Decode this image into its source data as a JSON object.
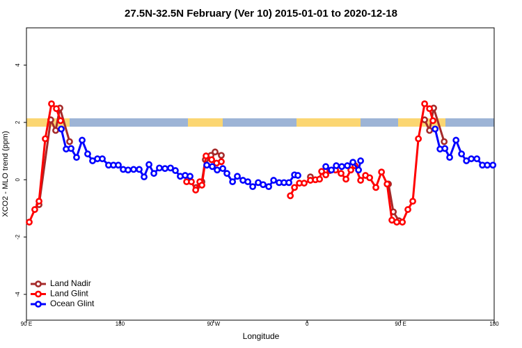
{
  "chart_data": {
    "type": "line",
    "title": "27.5N-32.5N February (Ver 10)   2015-01-01 to 2020-12-18",
    "x_label": "Longitude",
    "y_label": "XCO2 - MLO trend (ppm)",
    "xlim": [
      90,
      540
    ],
    "ylim": [
      -4.9,
      5.3
    ],
    "xticks": [
      {
        "value": 90,
        "label": "90 E"
      },
      180,
      {
        "value": 270,
        "label": "90 W"
      },
      {
        "value": 360,
        "label": "0"
      },
      {
        "value": 450,
        "label": "90 E"
      },
      {
        "value": 540,
        "label": "180"
      }
    ],
    "yticks": [
      -4,
      -2,
      0,
      2,
      4
    ],
    "legend": "bottom-left",
    "series": [
      {
        "name": "Land Nadir",
        "color": "#a52a2a",
        "x": [
          102.1,
          113.4,
          118.1,
          122.2,
          131.5,
          null,
          253.4,
          258.8,
          262.1,
          267.5,
          271.5,
          277.5,
          null,
          363.2,
          null,
          438.3,
          443.0,
          448.3,
          null,
          473.1,
          477.8,
          481.8,
          491.9
        ],
        "values": [
          -0.87,
          2.09,
          1.72,
          2.5,
          1.33,
          null,
          -0.27,
          -0.07,
          0.7,
          0.85,
          0.97,
          0.85,
          null,
          0.1,
          null,
          -0.15,
          -1.12,
          -1.43,
          null,
          2.09,
          1.72,
          2.5,
          1.33
        ]
      },
      {
        "name": "Land Glint",
        "color": "#ff0000",
        "x": [
          92.7,
          98.0,
          102.1,
          108.1,
          114.1,
          118.8,
          122.8,
          null,
          244.1,
          248.7,
          252.8,
          256.8,
          258.8,
          262.8,
          268.2,
          272.9,
          277.5,
          null,
          343.9,
          347.9,
          352.6,
          357.2,
          363.2,
          368.0,
          372.0,
          374.0,
          378.0,
          382.0,
          387.4,
          392.7,
          397.4,
          402.1,
          406.1,
          411.5,
          416.2,
          420.2,
          426.2,
          431.6,
          437.0,
          441.6,
          446.3,
          451.7,
          457.0,
          461.7,
          467.1,
          473.1,
          477.8,
          481.1
        ],
        "values": [
          -1.48,
          -1.04,
          -0.75,
          1.43,
          2.65,
          2.48,
          2.06,
          null,
          -0.07,
          -0.07,
          -0.36,
          -0.07,
          -0.19,
          0.83,
          0.7,
          0.58,
          0.63,
          null,
          -0.56,
          -0.27,
          -0.12,
          -0.12,
          -0.02,
          0,
          0.02,
          0.29,
          0.17,
          0.32,
          0.34,
          0.22,
          0.02,
          0.34,
          0.49,
          -0.02,
          0.15,
          0.07,
          -0.27,
          0.27,
          -0.15,
          -1.41,
          -1.48,
          -1.48,
          -1.04,
          -0.75,
          1.43,
          2.65,
          2.48,
          2.06
        ]
      },
      {
        "name": "Ocean Glint",
        "color": "#0000ff",
        "x": [
          123.5,
          128.2,
          132.9,
          138.2,
          143.6,
          148.9,
          153.6,
          158.3,
          163.0,
          169.0,
          173.7,
          178.4,
          183.1,
          187.8,
          193.1,
          198.5,
          203.2,
          207.9,
          212.6,
          217.9,
          223.3,
          228.6,
          233.3,
          238.0,
          242.7,
          247.4,
          null,
          263.5,
          268.8,
          273.5,
          278.9,
          282.9,
          288.3,
          292.9,
          298.3,
          303.0,
          307.7,
          313.0,
          317.7,
          323.1,
          327.8,
          333.1,
          337.8,
          342.5,
          347.9,
          351.2,
          null,
          378.0,
          383.4,
          388.1,
          393.4,
          398.8,
          404.1,
          409.5,
          411.5,
          null,
          483.2,
          487.9,
          492.6,
          497.2,
          503.3,
          508.6,
          513.3,
          518.0,
          523.4,
          528.7,
          533.4,
          538.8
        ],
        "values": [
          1.77,
          1.07,
          1.09,
          0.78,
          1.38,
          0.9,
          0.66,
          0.73,
          0.73,
          0.51,
          0.51,
          0.51,
          0.36,
          0.34,
          0.36,
          0.36,
          0.1,
          0.53,
          0.22,
          0.41,
          0.39,
          0.41,
          0.32,
          0.12,
          0.15,
          0.12,
          null,
          0.51,
          0.46,
          0.34,
          0.39,
          0.22,
          -0.07,
          0.12,
          -0.02,
          -0.07,
          -0.24,
          -0.1,
          -0.17,
          -0.24,
          -0.02,
          -0.1,
          -0.1,
          -0.1,
          0.17,
          0.15,
          null,
          0.46,
          0.34,
          0.49,
          0.46,
          0.49,
          0.61,
          0.34,
          0.66,
          null,
          1.77,
          1.07,
          1.09,
          0.78,
          1.38,
          0.9,
          0.66,
          0.73,
          0.73,
          0.51,
          0.51,
          0.51
        ]
      }
    ]
  }
}
